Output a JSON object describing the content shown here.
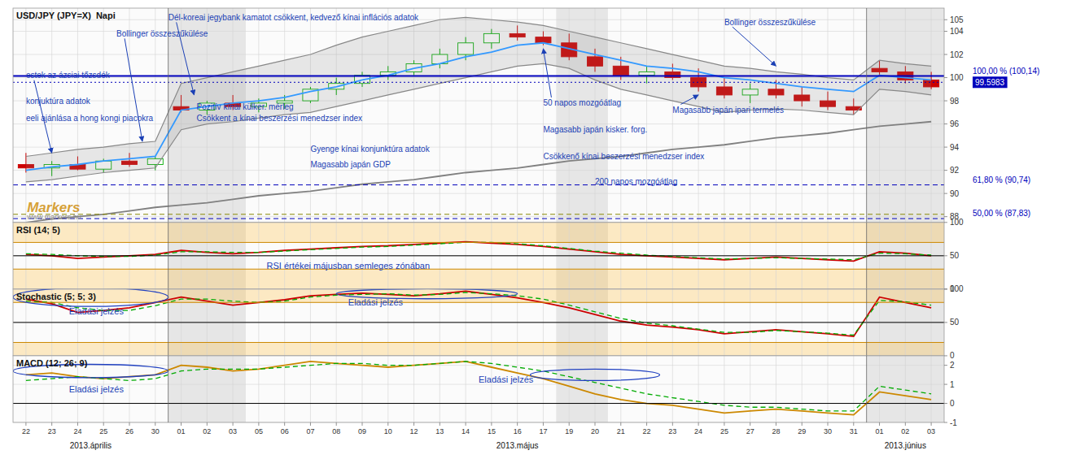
{
  "chart_data": [
    {
      "type": "candlestick",
      "title": "USD/JPY (JPY=X)  Napi",
      "categories": [
        "22",
        "23",
        "24",
        "25",
        "26",
        "30",
        "01",
        "02",
        "03",
        "05",
        "06",
        "07",
        "08",
        "09",
        "10",
        "12",
        "13",
        "14",
        "15",
        "16",
        "17",
        "19",
        "20",
        "21",
        "22",
        "23",
        "24",
        "25",
        "27",
        "28",
        "29",
        "30",
        "31",
        "01",
        "02",
        "03"
      ],
      "series": [
        {
          "type": "candlestick",
          "open": [
            92.5,
            92.2,
            92.5,
            92.1,
            92.8,
            92.5,
            97.5,
            97.2,
            97.8,
            97.5,
            97.8,
            98.0,
            99.0,
            99.5,
            100.2,
            100.5,
            101.2,
            102.0,
            103.0,
            103.8,
            103.5,
            103.0,
            101.8,
            101.0,
            100.2,
            100.5,
            100.0,
            99.2,
            98.5,
            99.0,
            98.5,
            98.0,
            97.5,
            100.8,
            100.5,
            99.8
          ],
          "high": [
            93.5,
            92.8,
            93.2,
            93.0,
            93.5,
            93.2,
            98.5,
            98.0,
            98.5,
            98.2,
            98.5,
            99.2,
            100.0,
            100.5,
            101.0,
            101.5,
            102.5,
            103.5,
            104.2,
            104.5,
            104.0,
            103.8,
            102.5,
            101.8,
            101.0,
            101.2,
            100.8,
            100.0,
            99.5,
            99.8,
            99.2,
            98.8,
            98.2,
            101.5,
            101.0,
            100.5
          ],
          "low": [
            91.8,
            91.5,
            92.0,
            91.8,
            92.3,
            92.0,
            97.0,
            96.8,
            97.2,
            97.0,
            97.3,
            97.8,
            98.5,
            99.2,
            99.8,
            100.2,
            100.8,
            101.5,
            102.5,
            103.2,
            102.8,
            101.5,
            100.5,
            99.8,
            99.5,
            99.8,
            98.8,
            98.2,
            97.8,
            98.2,
            97.5,
            97.2,
            96.8,
            100.2,
            99.5,
            99.0
          ],
          "close": [
            92.2,
            92.5,
            92.1,
            92.8,
            92.5,
            93.0,
            97.2,
            97.8,
            97.5,
            97.8,
            98.0,
            99.0,
            99.5,
            100.2,
            100.5,
            101.2,
            102.0,
            103.0,
            103.8,
            103.5,
            103.0,
            101.8,
            101.0,
            100.2,
            100.5,
            100.0,
            99.2,
            98.5,
            99.0,
            98.5,
            98.0,
            97.5,
            97.2,
            100.5,
            99.8,
            99.2
          ],
          "colors": [
            "#cc0000",
            "#00aa00",
            "#cc0000",
            "#00aa00",
            "#cc0000",
            "#00aa00",
            "#cc0000",
            "#00aa00",
            "#cc0000",
            "#00aa00",
            "#00aa00",
            "#00aa00",
            "#00aa00",
            "#00aa00",
            "#00aa00",
            "#00aa00",
            "#00aa00",
            "#00aa00",
            "#00aa00",
            "#cc0000",
            "#cc0000",
            "#cc0000",
            "#cc0000",
            "#cc0000",
            "#00aa00",
            "#cc0000",
            "#cc0000",
            "#cc0000",
            "#00aa00",
            "#cc0000",
            "#cc0000",
            "#cc0000",
            "#cc0000",
            "#cc0000",
            "#cc0000",
            "#cc0000"
          ]
        },
        {
          "type": "band",
          "color": "#888888",
          "upper": [
            93.2,
            93.5,
            93.8,
            94.0,
            94.3,
            94.5,
            99.5,
            100.0,
            100.5,
            101.0,
            101.5,
            102.0,
            102.8,
            103.5,
            104.0,
            104.5,
            105.0,
            105.2,
            105.0,
            104.8,
            104.5,
            104.0,
            103.5,
            103.0,
            102.5,
            102.0,
            101.5,
            101.0,
            100.8,
            100.5,
            100.3,
            100.0,
            99.8,
            101.5,
            101.2,
            101.0
          ],
          "lower": [
            91.0,
            91.2,
            91.5,
            91.8,
            92.0,
            92.2,
            95.5,
            96.0,
            96.2,
            96.5,
            96.8,
            97.0,
            97.5,
            98.0,
            98.5,
            99.0,
            99.5,
            100.0,
            100.5,
            101.0,
            101.2,
            100.8,
            99.8,
            99.0,
            98.5,
            98.0,
            97.5,
            97.0,
            97.2,
            97.3,
            97.2,
            97.0,
            96.8,
            99.0,
            98.8,
            98.5
          ]
        },
        {
          "type": "line",
          "color": "#3399ff",
          "values": [
            92.0,
            92.3,
            92.5,
            92.8,
            93.0,
            93.2,
            97.2,
            97.5,
            97.8,
            98.0,
            98.3,
            98.8,
            99.2,
            99.8,
            100.2,
            100.8,
            101.2,
            101.8,
            102.2,
            102.8,
            103.0,
            102.5,
            102.0,
            101.5,
            101.0,
            100.8,
            100.5,
            100.0,
            99.8,
            99.5,
            99.2,
            99.0,
            98.8,
            100.2,
            100.0,
            99.8
          ]
        },
        {
          "type": "line",
          "color": "#808080",
          "values": [
            87.5,
            87.8,
            88.0,
            88.2,
            88.5,
            88.8,
            89.0,
            89.2,
            89.5,
            89.8,
            90.0,
            90.2,
            90.5,
            90.8,
            91.0,
            91.2,
            91.5,
            91.8,
            92.0,
            92.2,
            92.5,
            92.8,
            93.0,
            93.2,
            93.5,
            93.8,
            94.0,
            94.2,
            94.5,
            94.8,
            95.0,
            95.2,
            95.5,
            95.8,
            96.0,
            96.2
          ]
        }
      ],
      "hlines": [
        {
          "value": 100.14,
          "label": "100,00 % (100,14)",
          "color": "#0000bb",
          "line_style": "solid"
        },
        {
          "value": 90.74,
          "label": "61,80 % (90,74)",
          "color": "#0000bb",
          "line_style": "dashed"
        },
        {
          "value": 87.83,
          "label": "50,00 % (87,83)",
          "color": "#0000bb",
          "line_style": "dashed"
        },
        {
          "value": 99.5983,
          "label": "99.5983",
          "color": "#0000bb",
          "line_style": "dotted"
        },
        {
          "value": 88.2,
          "color": "#888800",
          "line_style": "dashed"
        }
      ],
      "annotations": [
        "Dél-koreai jegybank kamatot csökkent, kedvező kínai inflációs adatok",
        "Bollinger összeszűkülése",
        "Bollinger összeszűkülése",
        "estek az ázsiai tőzsdék",
        "50 napos mozgóátlag",
        "Magasabb japán ipari termelés",
        "Pozitív kínai külker. mérleg",
        "Csökkent a kínai beszerzési menedzser index",
        "Gyenge kínai konjunktúra adatok",
        "Magasabb japán GDP",
        "Magasabb japán kisker. forg.",
        "Csökkenő kínai beszerzési menedzser index",
        "200 napos mozgóátlag",
        "konjuktúra adatok",
        "eeli ajánlása a hong kongi piacokra"
      ],
      "watermark": [
        "Markers",
        "www.markers.hu"
      ],
      "ylim": [
        87.5,
        106.0
      ],
      "yticks": [
        88,
        90,
        92,
        94,
        96,
        98,
        100,
        102,
        104,
        105
      ],
      "grid": true,
      "tick_labels": "y"
    },
    {
      "type": "line",
      "title": "RSI (14; 5)",
      "categories": [
        "22",
        "23",
        "24",
        "25",
        "26",
        "30",
        "01",
        "02",
        "03",
        "05",
        "06",
        "07",
        "08",
        "09",
        "10",
        "12",
        "13",
        "14",
        "15",
        "16",
        "17",
        "19",
        "20",
        "21",
        "22",
        "23",
        "24",
        "25",
        "27",
        "28",
        "29",
        "30",
        "31",
        "01",
        "02",
        "03"
      ],
      "series": [
        {
          "color": "#cc0000",
          "values": [
            52,
            50,
            46,
            48,
            50,
            52,
            58,
            55,
            53,
            55,
            58,
            60,
            62,
            64,
            65,
            67,
            69,
            71,
            69,
            67,
            64,
            60,
            56,
            52,
            50,
            48,
            46,
            44,
            46,
            48,
            46,
            44,
            42,
            56,
            54,
            50
          ]
        },
        {
          "color": "#00aa00",
          "line_style": "dashed",
          "values": [
            53,
            52,
            50,
            49,
            49,
            51,
            56,
            56,
            55,
            55,
            57,
            59,
            61,
            63,
            64,
            66,
            68,
            70,
            70,
            68,
            65,
            61,
            57,
            54,
            51,
            49,
            47,
            45,
            46,
            47,
            46,
            45,
            44,
            54,
            53,
            51
          ]
        }
      ],
      "zones": [
        {
          "from": 70,
          "to": 100
        },
        {
          "from": 0,
          "to": 30
        }
      ],
      "hlines": [
        {
          "value": 70,
          "color": "#cc8800"
        },
        {
          "value": 30,
          "color": "#cc8800"
        },
        {
          "value": 50,
          "color": "#000000"
        }
      ],
      "annotations": [
        "RSI értékei májusban semleges zónában"
      ],
      "ylim": [
        0,
        100
      ],
      "yticks": [
        0,
        50,
        100
      ],
      "grid": true,
      "tick_labels": "y"
    },
    {
      "type": "line",
      "title": "Stochastic (5; 5; 3)",
      "categories": [
        "22",
        "23",
        "24",
        "25",
        "26",
        "30",
        "01",
        "02",
        "03",
        "05",
        "06",
        "07",
        "08",
        "09",
        "10",
        "12",
        "13",
        "14",
        "15",
        "16",
        "17",
        "19",
        "20",
        "21",
        "22",
        "23",
        "24",
        "25",
        "27",
        "28",
        "29",
        "30",
        "31",
        "01",
        "02",
        "03"
      ],
      "series": [
        {
          "color": "#cc0000",
          "values": [
            85,
            78,
            65,
            68,
            72,
            80,
            88,
            82,
            76,
            80,
            84,
            90,
            92,
            94,
            92,
            90,
            93,
            97,
            92,
            87,
            80,
            72,
            62,
            52,
            46,
            43,
            39,
            33,
            36,
            39,
            36,
            33,
            29,
            88,
            80,
            72
          ]
        },
        {
          "color": "#00aa00",
          "line_style": "dashed",
          "values": [
            82,
            80,
            72,
            68,
            68,
            75,
            85,
            85,
            82,
            80,
            82,
            88,
            91,
            92,
            93,
            91,
            92,
            95,
            93,
            90,
            85,
            76,
            66,
            56,
            49,
            45,
            40,
            35,
            35,
            38,
            36,
            34,
            31,
            83,
            81,
            76
          ]
        }
      ],
      "zones": [
        {
          "from": 80,
          "to": 100
        },
        {
          "from": 0,
          "to": 20
        }
      ],
      "hlines": [
        {
          "value": 80,
          "color": "#cc8800"
        },
        {
          "value": 20,
          "color": "#cc8800"
        },
        {
          "value": 50,
          "color": "#000000"
        }
      ],
      "annotations": [
        "Eladási jelzés",
        "Eladási jelzés"
      ],
      "ylim": [
        0,
        100
      ],
      "yticks": [
        0,
        50,
        100
      ],
      "grid": true,
      "tick_labels": "y"
    },
    {
      "type": "line",
      "title": "MACD (12; 26; 9)",
      "categories": [
        "22",
        "23",
        "24",
        "25",
        "26",
        "30",
        "01",
        "02",
        "03",
        "05",
        "06",
        "07",
        "08",
        "09",
        "10",
        "12",
        "13",
        "14",
        "15",
        "16",
        "17",
        "19",
        "20",
        "21",
        "22",
        "23",
        "24",
        "25",
        "27",
        "28",
        "29",
        "30",
        "31",
        "01",
        "02",
        "03"
      ],
      "series": [
        {
          "color": "#cc8800",
          "values": [
            1.5,
            1.6,
            1.4,
            1.3,
            1.4,
            1.5,
            2.0,
            1.9,
            1.7,
            1.8,
            2.0,
            2.2,
            2.1,
            2.0,
            1.9,
            2.0,
            2.1,
            2.2,
            1.9,
            1.6,
            1.3,
            0.9,
            0.5,
            0.2,
            0.0,
            -0.1,
            -0.3,
            -0.5,
            -0.4,
            -0.3,
            -0.4,
            -0.5,
            -0.6,
            0.6,
            0.4,
            0.2
          ]
        },
        {
          "color": "#00aa00",
          "line_style": "dashed",
          "values": [
            1.2,
            1.3,
            1.4,
            1.3,
            1.2,
            1.3,
            1.7,
            1.8,
            1.8,
            1.8,
            1.9,
            2.0,
            2.1,
            2.1,
            2.0,
            2.0,
            2.1,
            2.2,
            2.1,
            1.9,
            1.7,
            1.4,
            1.1,
            0.8,
            0.5,
            0.3,
            0.1,
            -0.1,
            -0.2,
            -0.2,
            -0.3,
            -0.4,
            -0.4,
            0.9,
            0.7,
            0.5
          ]
        }
      ],
      "hlines": [
        {
          "value": 0,
          "color": "#000000"
        }
      ],
      "annotations": [
        "Eladási jelzés",
        "Eladási jelzés"
      ],
      "periods": [
        "2013.április",
        "2013.május",
        "2013.június"
      ],
      "ylim": [
        -1.0,
        2.5
      ],
      "yticks": [
        -1,
        0,
        1,
        2
      ],
      "grid": true
    }
  ]
}
